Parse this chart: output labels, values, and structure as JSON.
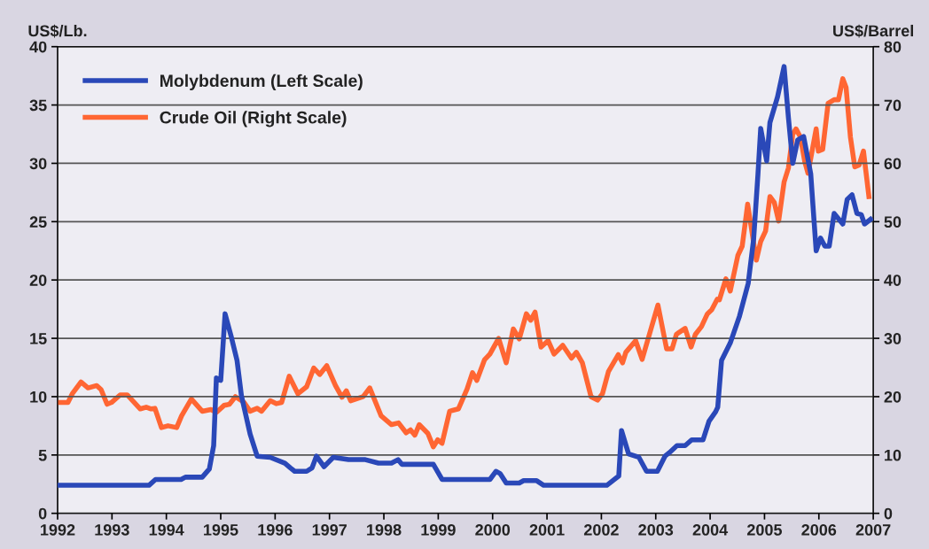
{
  "chart_data": {
    "type": "line",
    "ylabel": "US$/Lb.",
    "y2label": "US$/Barrel",
    "xlim": [
      1992,
      2007
    ],
    "xticks": [
      1992,
      1993,
      1994,
      1995,
      1996,
      1997,
      1998,
      1999,
      2000,
      2001,
      2002,
      2003,
      2004,
      2005,
      2006,
      2007
    ],
    "ylim": [
      0,
      40
    ],
    "yticks": [
      0,
      5,
      10,
      15,
      20,
      25,
      30,
      35,
      40
    ],
    "y2lim": [
      0,
      80
    ],
    "y2ticks": [
      0,
      10,
      20,
      30,
      40,
      50,
      60,
      70,
      80
    ],
    "grid": "y",
    "legend": "top left",
    "line_style": "solid",
    "marker": "none",
    "series": [
      {
        "name": "Molybdenum (Left Scale)",
        "color": "#2a48b8",
        "x": [
          1992.0,
          1993.68,
          1993.8,
          1994.27,
          1994.35,
          1994.66,
          1994.79,
          1994.87,
          1994.92,
          1995.0,
          1995.08,
          1995.19,
          1995.3,
          1995.38,
          1995.54,
          1995.67,
          1995.91,
          1996.18,
          1996.28,
          1996.36,
          1996.58,
          1996.68,
          1996.76,
          1996.9,
          1997.07,
          1997.35,
          1997.66,
          1997.9,
          1998.14,
          1998.26,
          1998.33,
          1998.91,
          1999.07,
          1999.95,
          2000.06,
          2000.14,
          2000.25,
          2000.49,
          2000.57,
          2000.81,
          2000.94,
          2002.1,
          2002.32,
          2002.37,
          2002.5,
          2002.69,
          2002.83,
          2003.03,
          2003.17,
          2003.25,
          2003.39,
          2003.54,
          2003.66,
          2003.87,
          2003.98,
          2004.1,
          2004.14,
          2004.21,
          2004.37,
          2004.54,
          2004.7,
          2004.8,
          2004.88,
          2004.93,
          2005.04,
          2005.1,
          2005.24,
          2005.36,
          2005.44,
          2005.52,
          2005.61,
          2005.72,
          2005.85,
          2005.95,
          2006.03,
          2006.11,
          2006.19,
          2006.28,
          2006.44,
          2006.52,
          2006.61,
          2006.7,
          2006.78,
          2006.84,
          2006.95
        ],
        "values": [
          2.4,
          2.4,
          2.9,
          2.9,
          3.1,
          3.1,
          3.8,
          5.8,
          11.6,
          11.4,
          17.1,
          15.2,
          13.1,
          10.1,
          6.8,
          4.9,
          4.8,
          4.3,
          3.9,
          3.6,
          3.6,
          3.9,
          4.9,
          4.0,
          4.8,
          4.6,
          4.6,
          4.3,
          4.3,
          4.6,
          4.2,
          4.2,
          2.9,
          2.9,
          3.6,
          3.4,
          2.6,
          2.6,
          2.8,
          2.8,
          2.4,
          2.4,
          3.2,
          7.1,
          5.1,
          4.8,
          3.6,
          3.6,
          4.9,
          5.2,
          5.8,
          5.8,
          6.3,
          6.3,
          7.9,
          8.7,
          9.1,
          13.1,
          14.6,
          16.9,
          19.7,
          23.5,
          29.1,
          33,
          30.2,
          33.5,
          35.7,
          38.3,
          33.9,
          30,
          32,
          32.3,
          29.1,
          22.5,
          23.6,
          22.9,
          22.9,
          25.7,
          24.8,
          26.9,
          27.3,
          25.7,
          25.6,
          24.8,
          25.2
        ]
      },
      {
        "name": "Crude Oil (Right Scale)",
        "color": "#ff6633",
        "axis": "y2",
        "x": [
          1992.0,
          1992.19,
          1992.27,
          1992.43,
          1992.56,
          1992.72,
          1992.8,
          1992.91,
          1992.99,
          1993.15,
          1993.28,
          1993.52,
          1993.63,
          1993.72,
          1993.79,
          1993.91,
          1994.03,
          1994.19,
          1994.28,
          1994.46,
          1994.66,
          1994.82,
          1994.92,
          1995.06,
          1995.16,
          1995.27,
          1995.43,
          1995.54,
          1995.67,
          1995.75,
          1995.91,
          1996.02,
          1996.12,
          1996.26,
          1996.42,
          1996.58,
          1996.71,
          1996.82,
          1996.95,
          1997.11,
          1997.23,
          1997.31,
          1997.39,
          1997.62,
          1997.74,
          1997.95,
          1998.14,
          1998.27,
          1998.41,
          1998.49,
          1998.57,
          1998.65,
          1998.81,
          1998.91,
          1998.99,
          1999.07,
          1999.21,
          1999.37,
          1999.53,
          1999.63,
          1999.71,
          1999.85,
          1999.95,
          2000.11,
          2000.25,
          2000.38,
          2000.49,
          2000.62,
          2000.7,
          2000.78,
          2000.89,
          2001.02,
          2001.13,
          2001.29,
          2001.45,
          2001.54,
          2001.65,
          2001.81,
          2001.93,
          2002.02,
          2002.13,
          2002.31,
          2002.39,
          2002.45,
          2002.63,
          2002.75,
          2003.04,
          2003.2,
          2003.3,
          2003.38,
          2003.54,
          2003.65,
          2003.73,
          2003.84,
          2003.95,
          2004.03,
          2004.13,
          2004.17,
          2004.29,
          2004.37,
          2004.51,
          2004.59,
          2004.69,
          2004.85,
          2004.93,
          2005.02,
          2005.1,
          2005.18,
          2005.26,
          2005.36,
          2005.44,
          2005.52,
          2005.58,
          2005.66,
          2005.74,
          2005.8,
          2005.95,
          2005.99,
          2006.07,
          2006.17,
          2006.28,
          2006.36,
          2006.44,
          2006.5,
          2006.58,
          2006.66,
          2006.74,
          2006.82,
          2006.92
        ],
        "values": [
          19.0,
          19,
          20.5,
          22.5,
          21.5,
          21.9,
          21.2,
          18.7,
          19,
          20.3,
          20.3,
          17.9,
          18.2,
          17.9,
          18,
          14.7,
          15,
          14.7,
          16.7,
          19.6,
          17.5,
          17.8,
          17.3,
          18.5,
          18.7,
          20,
          19,
          17.5,
          18,
          17.5,
          19.3,
          18.8,
          19,
          23.5,
          20.5,
          21.7,
          24.9,
          23.8,
          25.3,
          21.9,
          19.9,
          21,
          19.3,
          20,
          21.5,
          16.7,
          15.2,
          15.5,
          13.8,
          14.3,
          13.4,
          15.2,
          13.7,
          11.4,
          12.6,
          12,
          17.5,
          17.9,
          21.3,
          24.1,
          22.8,
          26.3,
          27.3,
          30,
          25.8,
          31.6,
          29.9,
          34.2,
          33.1,
          34.5,
          28.5,
          29.6,
          27.3,
          28.8,
          26.6,
          27.6,
          25.8,
          20,
          19.4,
          20.5,
          24.3,
          27.2,
          25.8,
          27.6,
          29.6,
          26.4,
          35.7,
          28.2,
          28.2,
          30.7,
          31.7,
          28.5,
          30.7,
          32,
          34.2,
          34.9,
          36.7,
          36.6,
          40.2,
          38.1,
          44.2,
          45.8,
          53,
          43.4,
          46.6,
          48.4,
          54.3,
          53.3,
          50.1,
          56.8,
          59.2,
          65,
          65.9,
          64.5,
          60.3,
          58.3,
          65.9,
          62.1,
          62.4,
          70.3,
          70.9,
          70.9,
          74.5,
          73,
          64.5,
          59.4,
          59.7,
          62.1,
          54.3
        ]
      }
    ]
  }
}
